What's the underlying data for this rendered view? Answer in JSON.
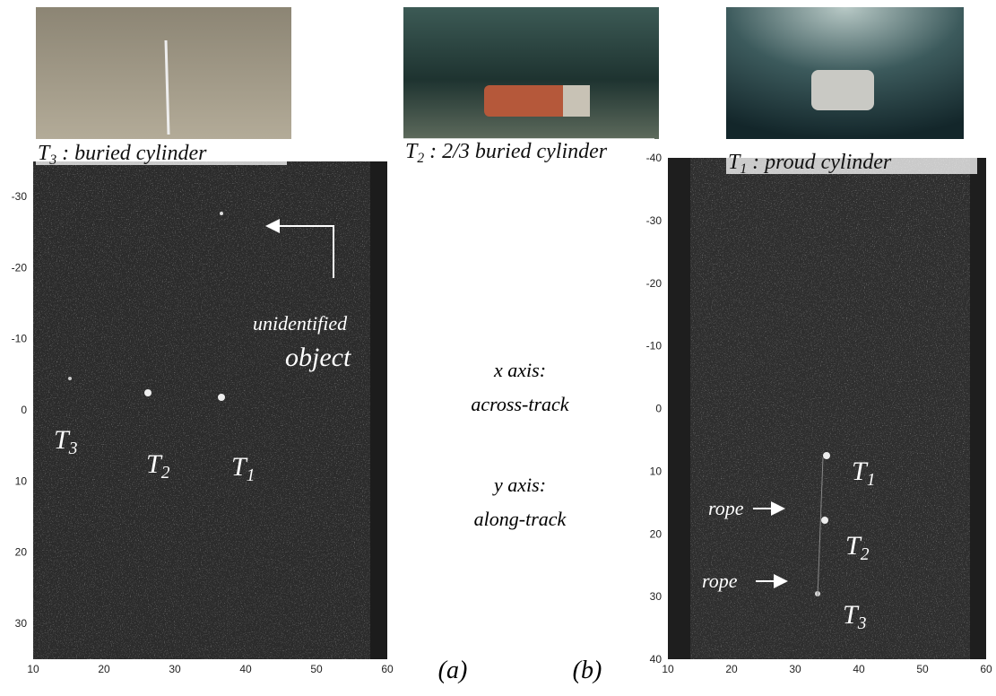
{
  "photos": [
    {
      "name": "T",
      "sub": "3",
      "caption": " : buried cylinder"
    },
    {
      "name": "T",
      "sub": "2",
      "caption": " : 2/3 buried cylinder"
    },
    {
      "name": "T",
      "sub": "1",
      "caption": " : proud cylinder"
    }
  ],
  "notes": {
    "x_axis": "x axis:",
    "x_desc": "across-track",
    "y_axis": "y axis:",
    "y_desc": "along-track"
  },
  "panels": [
    {
      "label": "(a)",
      "yticks": [
        -30,
        -20,
        -10,
        0,
        10,
        20,
        30
      ],
      "xticks": [
        10,
        20,
        30,
        40,
        50,
        60
      ],
      "annotations": [
        "unidentified",
        "object"
      ],
      "targets": [
        {
          "name": "T",
          "sub": "3"
        },
        {
          "name": "T",
          "sub": "2"
        },
        {
          "name": "T",
          "sub": "1"
        }
      ]
    },
    {
      "label": "(b)",
      "yticks": [
        -40,
        -30,
        -20,
        -10,
        0,
        10,
        20,
        30,
        40
      ],
      "xticks": [
        10,
        20,
        30,
        40,
        50,
        60
      ],
      "annotations": [
        "rope",
        "rope"
      ],
      "targets": [
        {
          "name": "T",
          "sub": "1"
        },
        {
          "name": "T",
          "sub": "2"
        },
        {
          "name": "T",
          "sub": "3"
        }
      ]
    }
  ]
}
